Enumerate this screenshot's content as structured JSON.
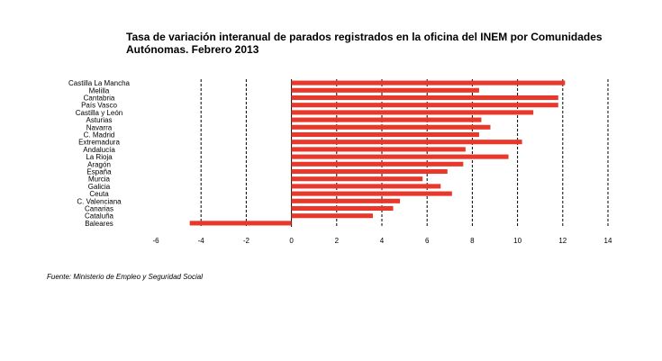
{
  "chart_data": {
    "type": "bar",
    "orientation": "horizontal",
    "title": "Tasa de variación interanual de parados registrados en la oficina del INEM por Comunidades Autónomas. Febrero 2013",
    "categories": [
      "Castilla La Mancha",
      "Melilla",
      "Cantabria",
      "País Vasco",
      "Castilla y León",
      "Asturias",
      "Navarra",
      "C. Madrid",
      "Extremadura",
      "Andalucía",
      "La Rioja",
      "Aragón",
      "España",
      "Murcia",
      "Galicia",
      "Ceuta",
      "C. Valenciana",
      "Canarias",
      "Cataluña",
      "Baleares"
    ],
    "values": [
      12.1,
      8.3,
      11.8,
      11.8,
      10.7,
      8.4,
      8.8,
      8.3,
      10.2,
      7.7,
      9.6,
      7.6,
      6.9,
      5.8,
      6.6,
      7.1,
      4.8,
      4.5,
      3.6,
      -4.5
    ],
    "xlim": [
      -6,
      14
    ],
    "xticks": [
      -6,
      -4,
      -2,
      0,
      2,
      4,
      6,
      8,
      10,
      12,
      14
    ],
    "grid": "vertical-dashed",
    "bar_color": "#e8382b"
  },
  "source": "Fuente: Ministerio de Empleo y Seguridad Social"
}
